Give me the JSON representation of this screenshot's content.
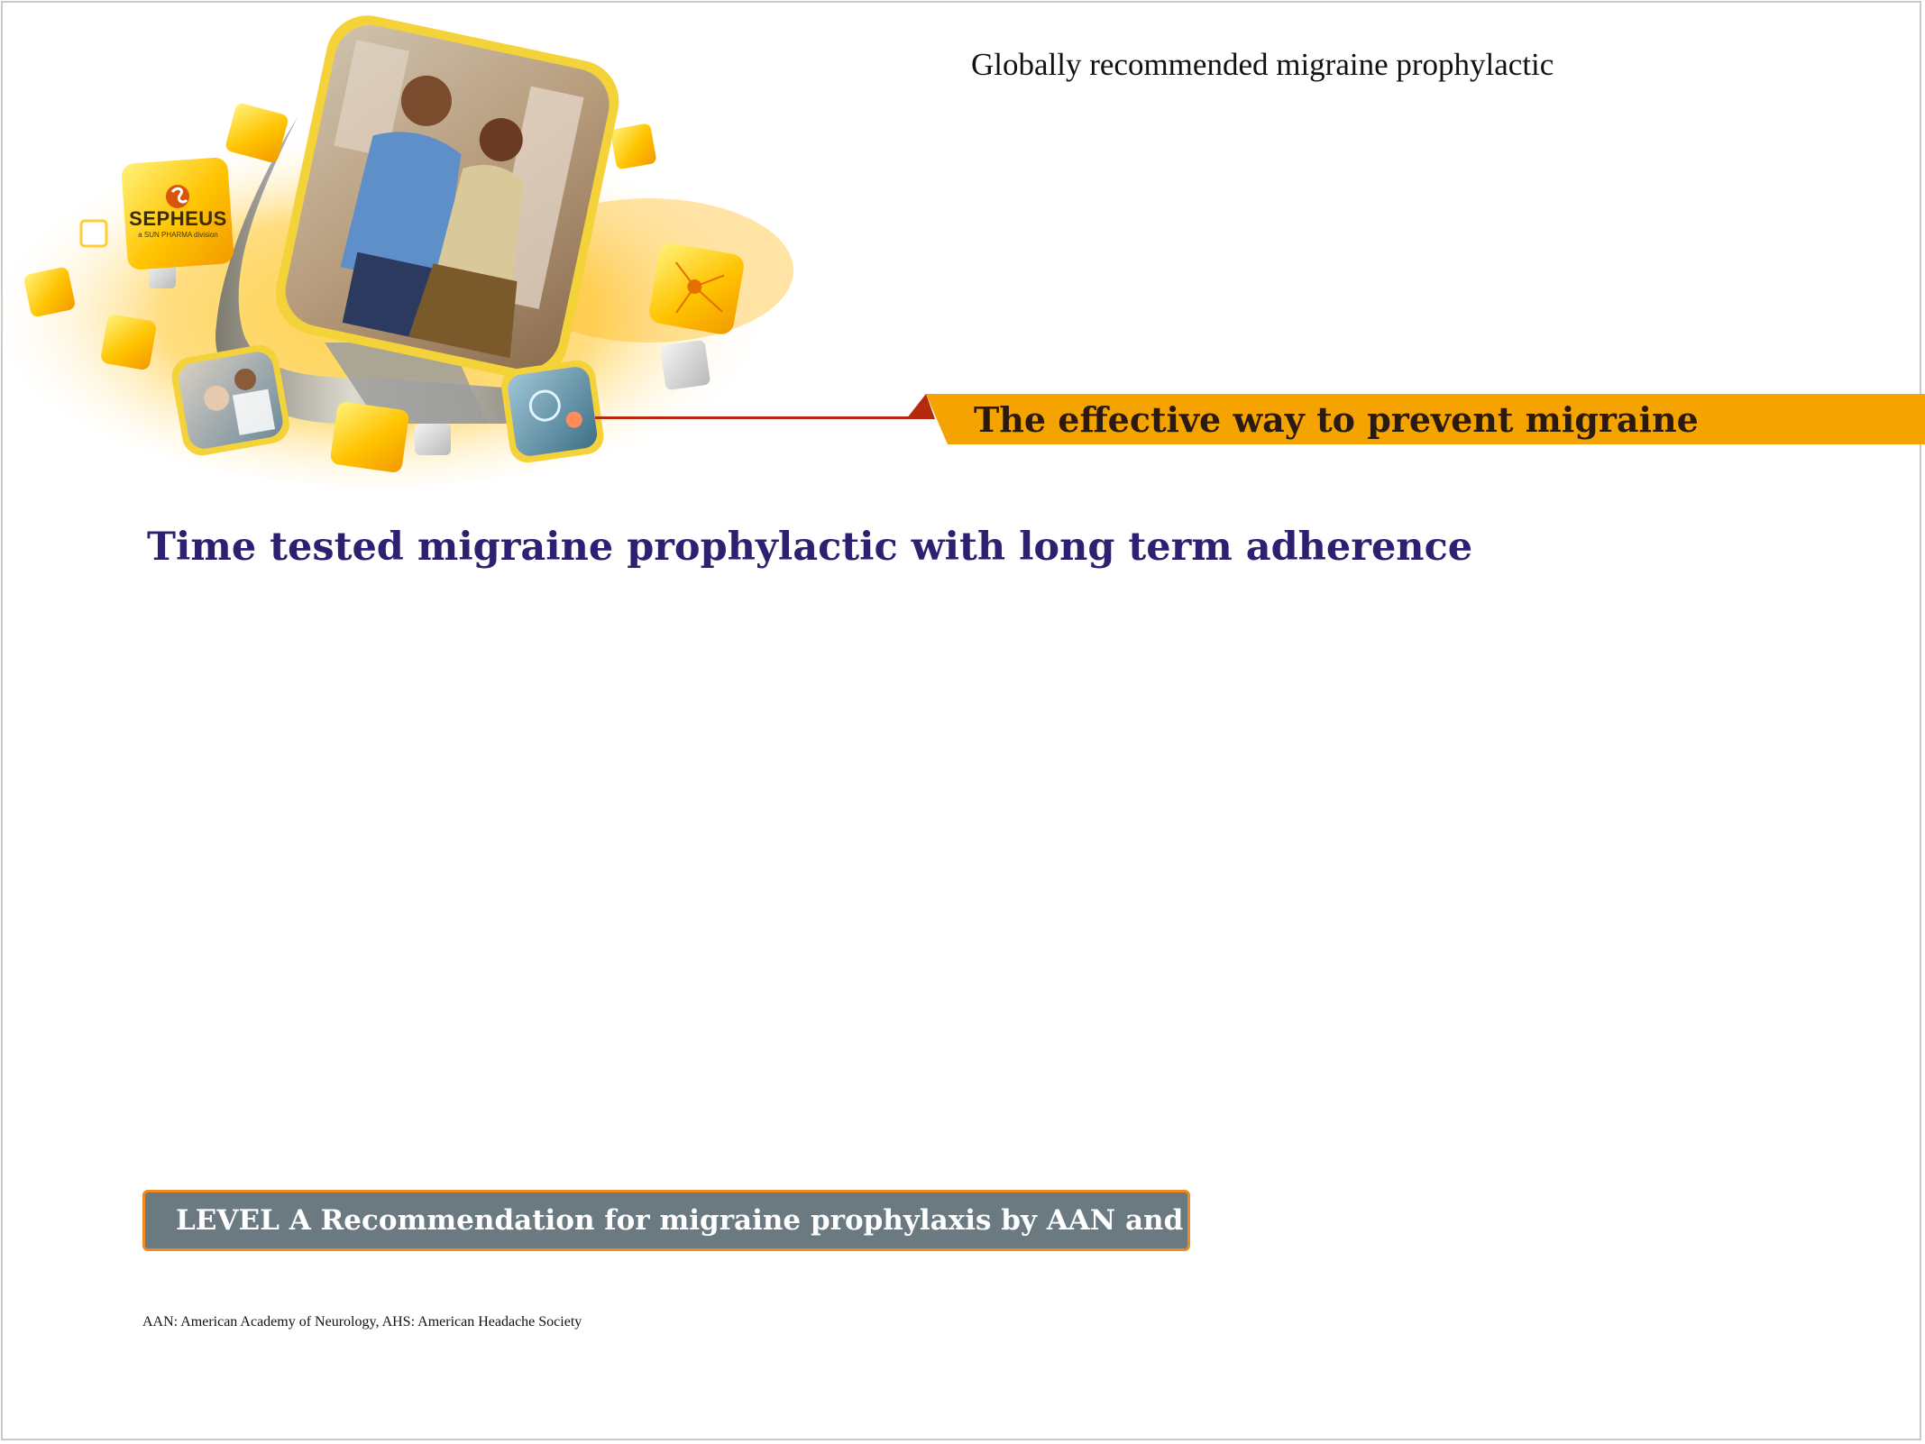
{
  "header": {
    "title": "Globally recommended migraine prophylactic"
  },
  "brand": {
    "logo_name": "SEPHEUS",
    "logo_tagline": "a SUN PHARMA division",
    "accent_color": "#f5a300",
    "connector_color": "#b52a0c"
  },
  "banner": {
    "text": "The effective way to prevent migraine"
  },
  "main": {
    "headline": "Time tested migraine prophylactic with long term adherence"
  },
  "callout": {
    "text": "LEVEL A Recommendation for migraine prophylaxis by AAN and AHS"
  },
  "footer": {
    "footnote": "AAN: American Academy of Neurology, AHS: American Headache Society"
  },
  "icons": [
    "brand-collage-illustration",
    "sepheus-logo-icon"
  ]
}
